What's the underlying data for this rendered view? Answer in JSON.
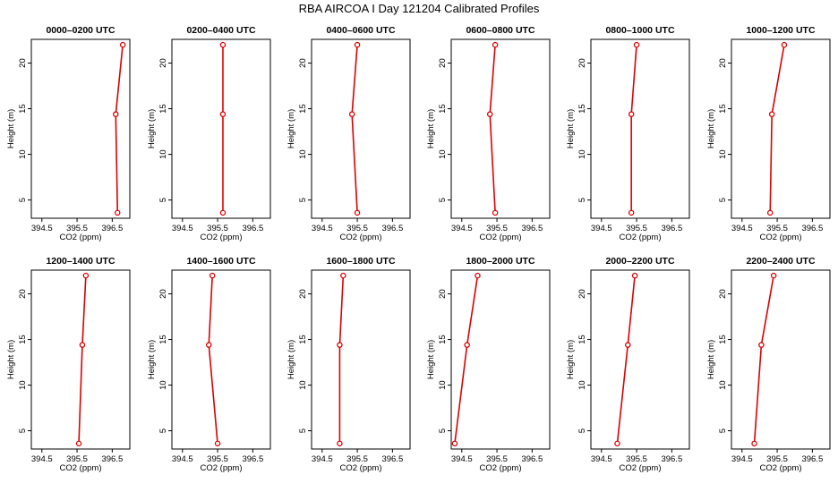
{
  "title": "RBA AIRCOA I  Day 121204  Calibrated Profiles",
  "colors": {
    "line": "#dd0000",
    "marker": "#dd0000",
    "axes": "#000000",
    "background": "#ffffff"
  },
  "chart_data": {
    "type": "line",
    "layout": "2 rows x 6 panels, each a vertical profile (x = CO2, y = height)",
    "xlabel": "CO2 (ppm)",
    "ylabel": "Height (m)",
    "xlim": [
      394.2,
      397.0
    ],
    "ylim": [
      3.0,
      22.6
    ],
    "xticks": [
      "394.5",
      "395.5",
      "396.5"
    ],
    "yticks": [
      "5",
      "10",
      "15",
      "20"
    ],
    "heights": [
      3.6,
      14.4,
      22.0
    ],
    "grid": false,
    "legend": "none",
    "panels": [
      {
        "title": "0000–0200 UTC",
        "x": [
          396.65,
          396.6,
          396.8
        ]
      },
      {
        "title": "0200–0400 UTC",
        "x": [
          395.65,
          395.65,
          395.65
        ]
      },
      {
        "title": "0400–0600 UTC",
        "x": [
          395.5,
          395.35,
          395.5
        ]
      },
      {
        "title": "0600–0800 UTC",
        "x": [
          395.45,
          395.3,
          395.45
        ]
      },
      {
        "title": "0800–1000 UTC",
        "x": [
          395.35,
          395.35,
          395.5
        ]
      },
      {
        "title": "1000–1200 UTC",
        "x": [
          395.3,
          395.35,
          395.7
        ]
      },
      {
        "title": "1200–1400 UTC",
        "x": [
          395.55,
          395.65,
          395.75
        ]
      },
      {
        "title": "1400–1600 UTC",
        "x": [
          395.5,
          395.25,
          395.35
        ]
      },
      {
        "title": "1600–1800 UTC",
        "x": [
          395.0,
          395.0,
          395.1
        ]
      },
      {
        "title": "1800–2000 UTC",
        "x": [
          394.3,
          394.65,
          394.95
        ]
      },
      {
        "title": "2000–2200 UTC",
        "x": [
          394.95,
          395.25,
          395.45
        ]
      },
      {
        "title": "2200–2400 UTC",
        "x": [
          394.85,
          395.05,
          395.4
        ]
      }
    ]
  }
}
